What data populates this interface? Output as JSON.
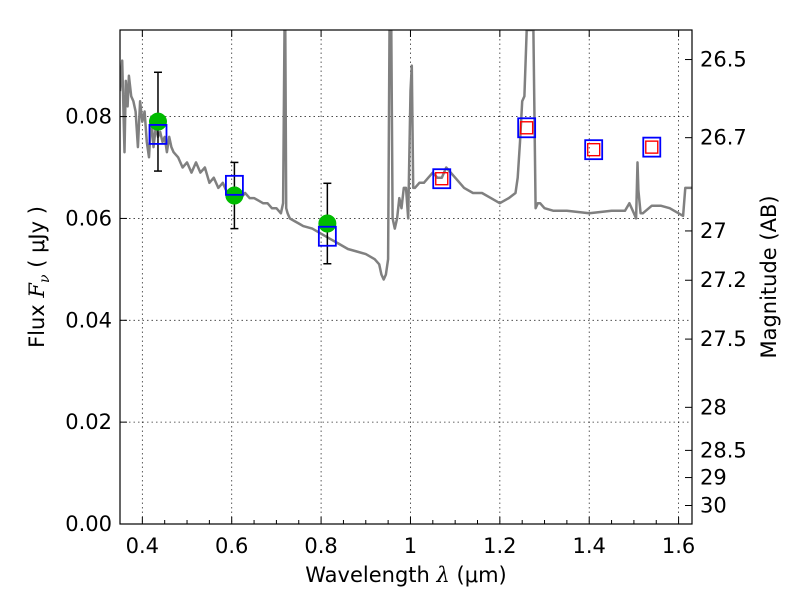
{
  "chart_data": {
    "type": "scatter",
    "xlabel": "Wavelength",
    "xlabel_symbol": "λ",
    "xlabel_unit": " (μm)",
    "ylabel": "Flux",
    "ylabel_symbol": "F",
    "ylabel_sub": "ν",
    "ylabel_unit": "( μJy )",
    "y2label": "Magnitude (AB)",
    "xlim": [
      0.35,
      1.63
    ],
    "ylim": [
      0.0,
      0.097
    ],
    "grid": true,
    "x_ticks": [
      0.4,
      0.6,
      0.8,
      1.0,
      1.2,
      1.4,
      1.6
    ],
    "x_tick_labels": [
      "0.4",
      "0.6",
      "0.8",
      "1",
      "1.2",
      "1.4",
      "1.6"
    ],
    "y_ticks": [
      0.0,
      0.02,
      0.04,
      0.06,
      0.08
    ],
    "y_tick_labels": [
      "0.00",
      "0.02",
      "0.04",
      "0.06",
      "0.08"
    ],
    "y2_ticks": [
      26.5,
      26.7,
      27,
      27.2,
      27.5,
      28,
      28.5,
      29,
      30
    ],
    "y2_tick_labels": [
      "26.5",
      "26.7",
      "27",
      "27.2",
      "27.5",
      "28",
      "28.5",
      "29",
      "30"
    ],
    "y2_zero_point_uJy": 3630780000,
    "colors": {
      "model": "#808080",
      "observed": "#00bb00",
      "model_photometry": "#0000ff",
      "upper_limit": "#ff0000",
      "errorbar": "#000000"
    },
    "series": [
      {
        "kind": "line",
        "x": [
          0.35,
          0.355,
          0.36,
          0.363,
          0.367,
          0.37,
          0.375,
          0.38,
          0.385,
          0.39,
          0.395,
          0.4,
          0.405,
          0.41,
          0.415,
          0.42,
          0.425,
          0.43,
          0.435,
          0.44,
          0.445,
          0.45,
          0.455,
          0.46,
          0.465,
          0.47,
          0.48,
          0.49,
          0.5,
          0.51,
          0.52,
          0.53,
          0.54,
          0.55,
          0.56,
          0.57,
          0.58,
          0.59,
          0.6,
          0.61,
          0.62,
          0.63,
          0.64,
          0.65,
          0.66,
          0.67,
          0.68,
          0.69,
          0.7,
          0.71,
          0.715,
          0.718,
          0.72,
          0.722,
          0.725,
          0.73,
          0.74,
          0.75,
          0.76,
          0.78,
          0.8,
          0.82,
          0.84,
          0.86,
          0.88,
          0.9,
          0.92,
          0.93,
          0.935,
          0.94,
          0.945,
          0.95,
          0.953,
          0.955,
          0.957,
          0.96,
          0.965,
          0.97,
          0.975,
          0.98,
          0.985,
          0.99,
          0.995,
          1.0,
          1.003,
          1.006,
          1.01,
          1.02,
          1.03,
          1.04,
          1.05,
          1.06,
          1.07,
          1.08,
          1.09,
          1.1,
          1.12,
          1.14,
          1.16,
          1.18,
          1.2,
          1.22,
          1.235,
          1.24,
          1.245,
          1.25,
          1.255,
          1.26,
          1.265,
          1.27,
          1.275,
          1.28,
          1.285,
          1.29,
          1.3,
          1.32,
          1.35,
          1.4,
          1.45,
          1.48,
          1.49,
          1.5,
          1.505,
          1.508,
          1.51,
          1.515,
          1.52,
          1.54,
          1.56,
          1.58,
          1.6,
          1.61,
          1.615,
          1.62,
          1.63
        ],
        "y": [
          0.085,
          0.091,
          0.073,
          0.087,
          0.082,
          0.088,
          0.084,
          0.083,
          0.081,
          0.074,
          0.083,
          0.079,
          0.081,
          0.075,
          0.072,
          0.08,
          0.074,
          0.078,
          0.076,
          0.077,
          0.075,
          0.076,
          0.073,
          0.076,
          0.074,
          0.073,
          0.072,
          0.07,
          0.071,
          0.069,
          0.071,
          0.069,
          0.07,
          0.067,
          0.068,
          0.066,
          0.067,
          0.065,
          0.0655,
          0.066,
          0.064,
          0.065,
          0.064,
          0.064,
          0.0635,
          0.063,
          0.063,
          0.062,
          0.062,
          0.061,
          0.063,
          0.097,
          0.097,
          0.062,
          0.061,
          0.06,
          0.0595,
          0.059,
          0.0585,
          0.058,
          0.057,
          0.056,
          0.055,
          0.054,
          0.0535,
          0.053,
          0.052,
          0.051,
          0.049,
          0.048,
          0.049,
          0.052,
          0.097,
          0.097,
          0.097,
          0.06,
          0.058,
          0.06,
          0.064,
          0.062,
          0.066,
          0.066,
          0.06,
          0.085,
          0.09,
          0.066,
          0.066,
          0.067,
          0.067,
          0.068,
          0.069,
          0.068,
          0.068,
          0.07,
          0.069,
          0.068,
          0.066,
          0.065,
          0.065,
          0.064,
          0.063,
          0.064,
          0.065,
          0.068,
          0.075,
          0.083,
          0.084,
          0.097,
          0.097,
          0.097,
          0.097,
          0.062,
          0.063,
          0.063,
          0.062,
          0.0615,
          0.0615,
          0.061,
          0.0615,
          0.0615,
          0.063,
          0.061,
          0.06,
          0.071,
          0.0655,
          0.061,
          0.061,
          0.0625,
          0.0625,
          0.062,
          0.061,
          0.0605,
          0.066,
          0.066,
          0.066
        ]
      },
      {
        "kind": "observed",
        "x": [
          0.435,
          0.606,
          0.814
        ],
        "y": [
          0.079,
          0.0645,
          0.059
        ],
        "yerr": [
          0.0097,
          0.0065,
          0.0079
        ]
      },
      {
        "kind": "model_photometry",
        "x": [
          0.435,
          0.606,
          0.814,
          1.07,
          1.26,
          1.41,
          1.54
        ],
        "y": [
          0.0765,
          0.0665,
          0.0565,
          0.0678,
          0.0778,
          0.0735,
          0.074
        ]
      },
      {
        "kind": "upper_limit",
        "x": [
          1.07,
          1.26,
          1.41,
          1.54
        ],
        "y": [
          0.0678,
          0.0778,
          0.0735,
          0.074
        ]
      }
    ]
  }
}
